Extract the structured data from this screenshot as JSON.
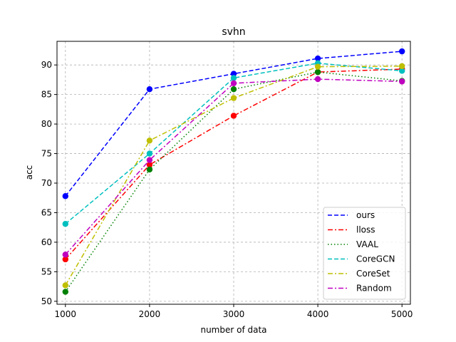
{
  "chart_data": {
    "type": "line",
    "title": "svhn",
    "xlabel": "number of data",
    "ylabel": "acc",
    "x": [
      1000,
      2000,
      3000,
      4000,
      5000
    ],
    "xlim": [
      900,
      5100
    ],
    "ylim": [
      49.5,
      94.0
    ],
    "xticks": [
      1000,
      2000,
      3000,
      4000,
      5000
    ],
    "yticks": [
      50,
      55,
      60,
      65,
      70,
      75,
      80,
      85,
      90
    ],
    "grid": true,
    "legend_position": "lower-right",
    "series": [
      {
        "name": "ours",
        "color": "#0000ff",
        "dash": "dashed",
        "values": [
          67.8,
          85.9,
          88.5,
          91.1,
          92.3
        ]
      },
      {
        "name": "lloss",
        "color": "#ff0000",
        "dash": "dashdot",
        "values": [
          57.1,
          73.1,
          81.4,
          88.8,
          89.3
        ]
      },
      {
        "name": "VAAL",
        "color": "#008000",
        "dash": "dotted",
        "values": [
          51.6,
          72.3,
          85.9,
          88.8,
          87.3
        ]
      },
      {
        "name": "CoreGCN",
        "color": "#00bfbf",
        "dash": "dashed",
        "values": [
          63.1,
          75.0,
          87.8,
          90.3,
          89.0
        ]
      },
      {
        "name": "CoreSet",
        "color": "#bfbf00",
        "dash": "dashdot",
        "values": [
          52.7,
          77.2,
          84.4,
          89.7,
          89.8
        ]
      },
      {
        "name": "Random",
        "color": "#bf00bf",
        "dash": "dashdot",
        "values": [
          57.9,
          73.9,
          86.9,
          87.6,
          87.2
        ]
      }
    ]
  }
}
